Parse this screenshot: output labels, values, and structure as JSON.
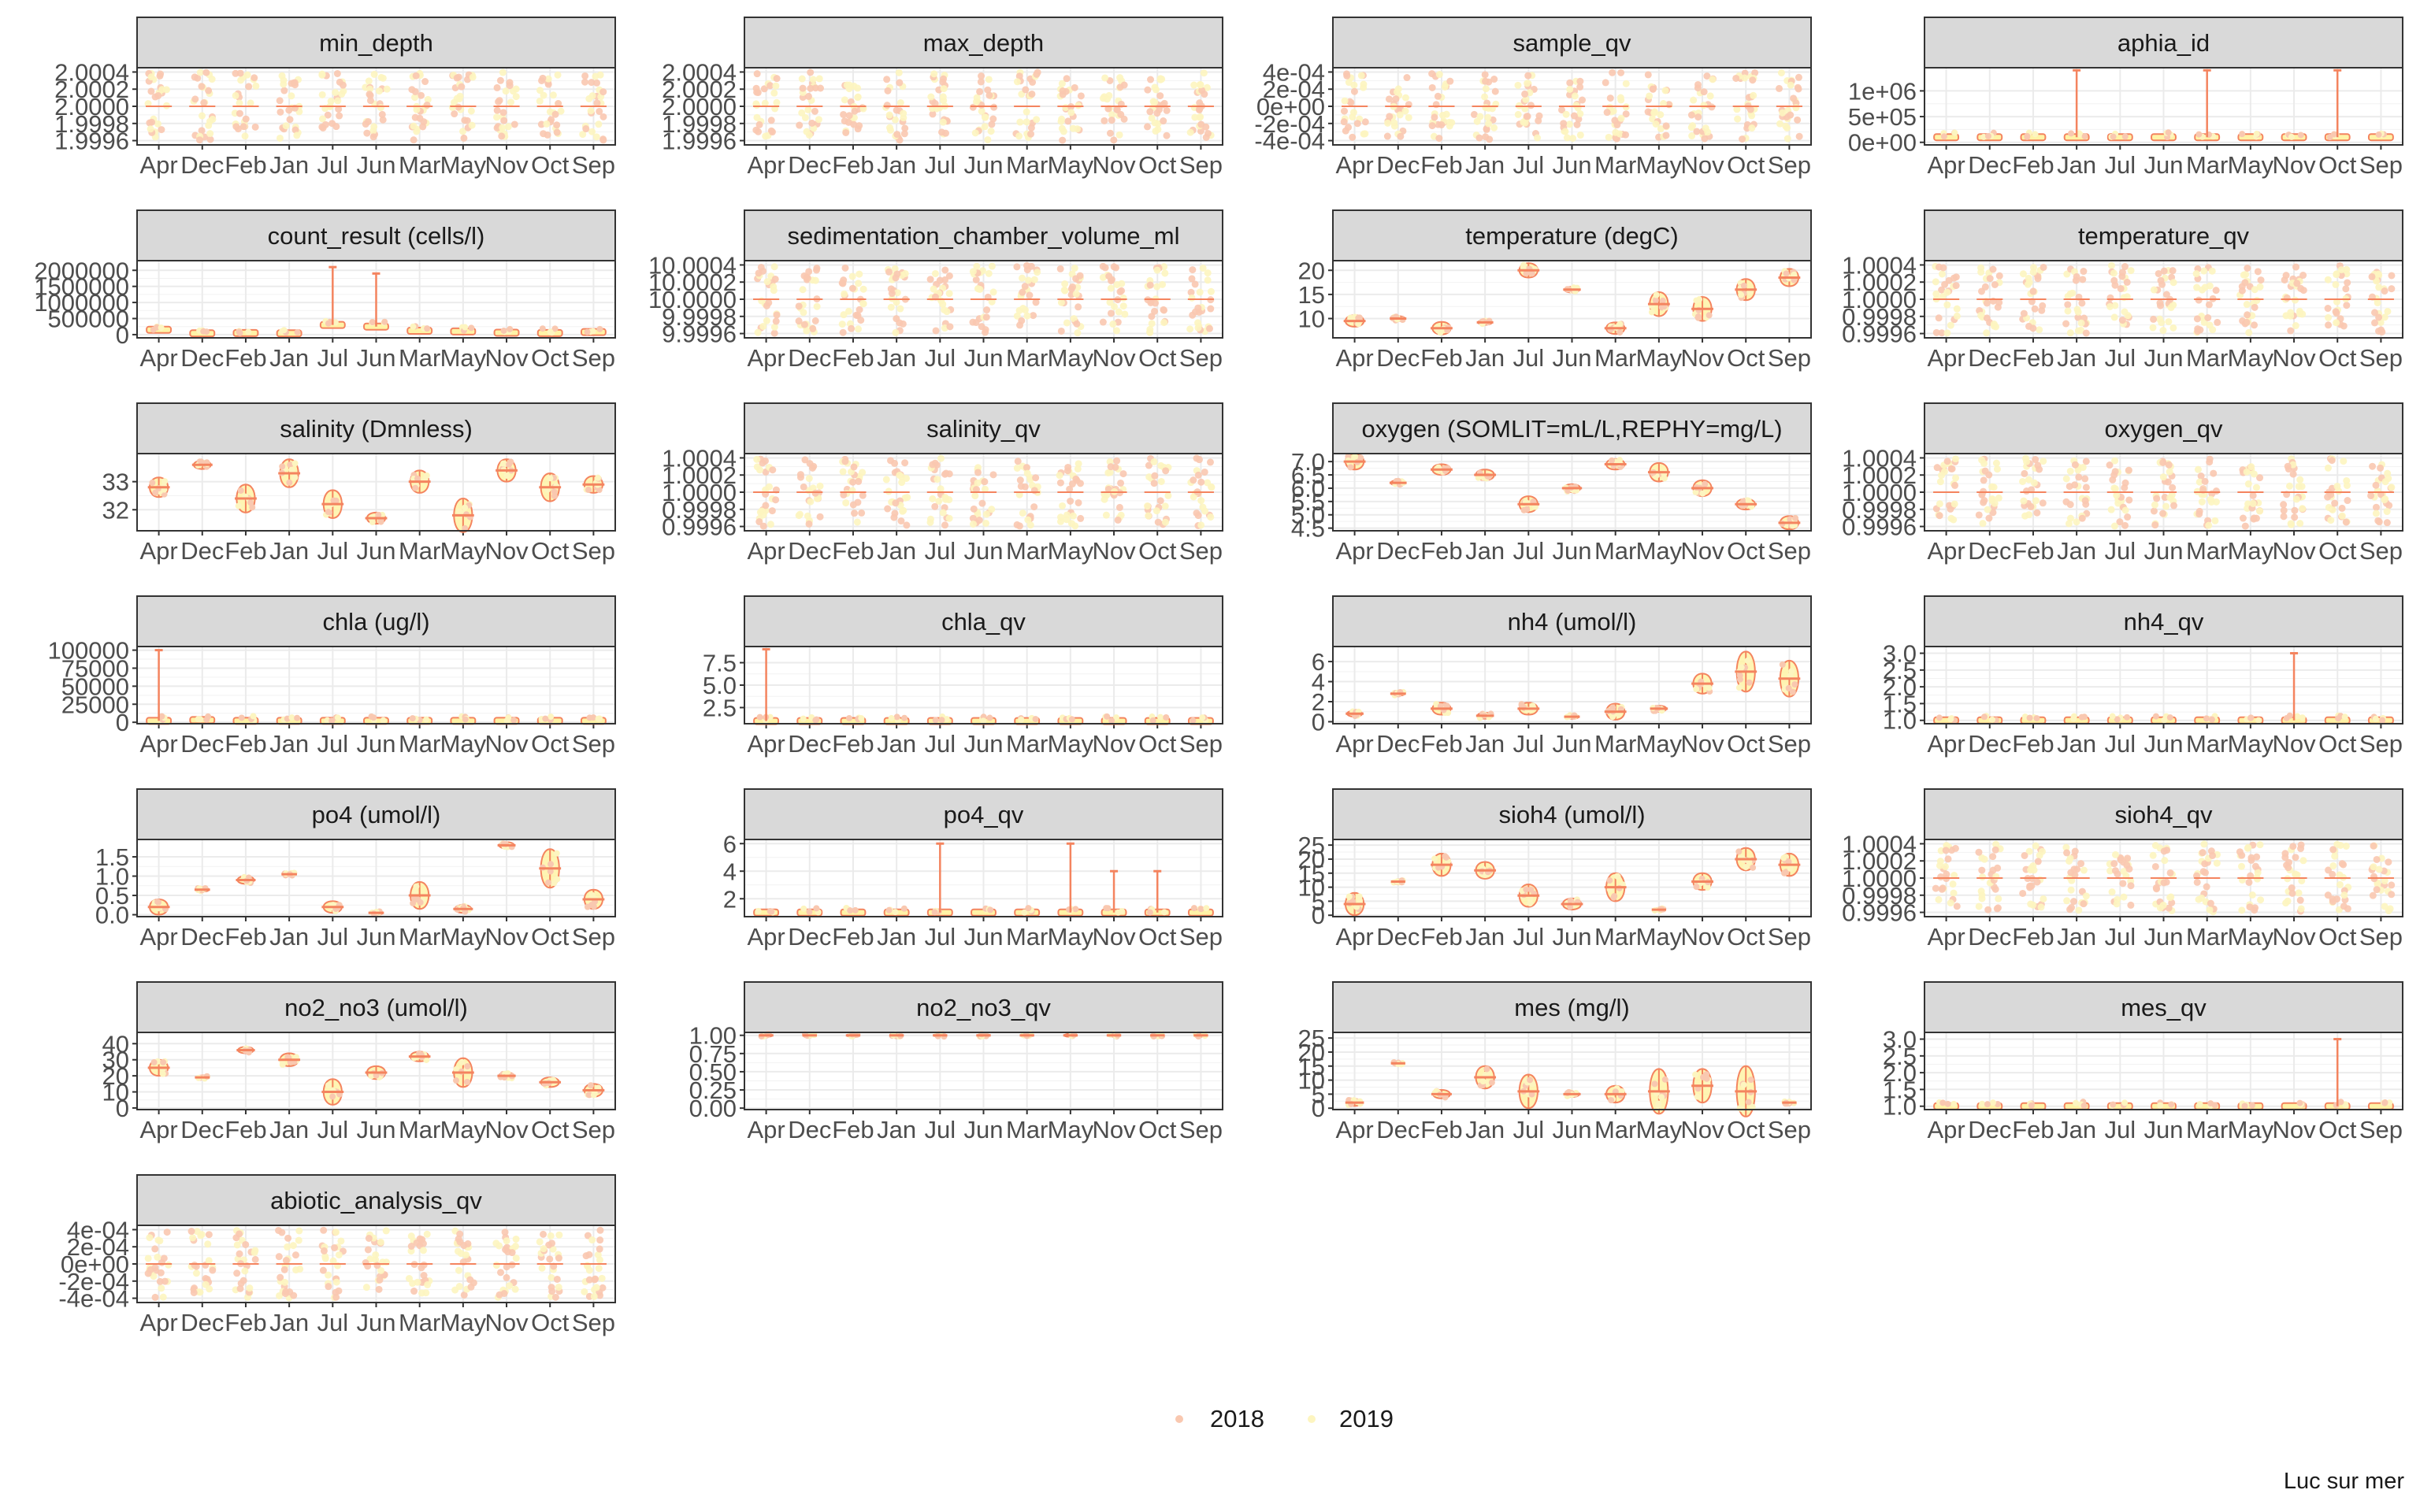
{
  "caption": "Luc sur mer",
  "legend": {
    "placement": "bottom",
    "entries": [
      {
        "label": "2018",
        "color": "#F9C8B0"
      },
      {
        "label": "2019",
        "color": "#FDF5C0"
      }
    ]
  },
  "colors": {
    "y2018_point": "#F9C8B0",
    "y2019_point": "#FDF5C0",
    "violin_dark": "#F4845F",
    "violin_light": "#FFF3A6",
    "strip_fill": "#D9D9D9",
    "grid_major": "#EBEBEB",
    "panel_border": "#333333"
  },
  "chart_data": {
    "type": "violin",
    "grid": true,
    "categories": [
      "Apr",
      "Dec",
      "Feb",
      "Jan",
      "Jul",
      "Jun",
      "Mar",
      "May",
      "Nov",
      "Oct",
      "Sep"
    ],
    "panels": [
      {
        "title": "min_depth",
        "ylim": [
          1.99955,
          2.00045
        ],
        "yticks": [
          1.9996,
          1.9998,
          2.0,
          2.0002,
          2.0004
        ],
        "yticklabels": [
          "1.9996",
          "1.9998",
          "2.0000",
          "2.0002",
          "2.0004"
        ],
        "kind": "jitter",
        "values": [
          2,
          2,
          2,
          2,
          2,
          2,
          2,
          2,
          2,
          2,
          2
        ]
      },
      {
        "title": "max_depth",
        "ylim": [
          1.99955,
          2.00045
        ],
        "yticks": [
          1.9996,
          1.9998,
          2.0,
          2.0002,
          2.0004
        ],
        "yticklabels": [
          "1.9996",
          "1.9998",
          "2.0000",
          "2.0002",
          "2.0004"
        ],
        "kind": "jitter",
        "values": [
          2,
          2,
          2,
          2,
          2,
          2,
          2,
          2,
          2,
          2,
          2
        ]
      },
      {
        "title": "sample_qv",
        "ylim": [
          -0.00045,
          0.00045
        ],
        "yticks": [
          -0.0004,
          -0.0002,
          0,
          0.0002,
          0.0004
        ],
        "yticklabels": [
          "-4e-04",
          "-2e-04",
          "0e+00",
          "2e-04",
          "4e-04"
        ],
        "kind": "jitter",
        "values": [
          0,
          0,
          0,
          0,
          0,
          0,
          0,
          0,
          0,
          0,
          0
        ]
      },
      {
        "title": "aphia_id",
        "ylim": [
          -50000,
          1450000
        ],
        "yticks": [
          0,
          500000,
          1000000
        ],
        "yticklabels": [
          "0e+00",
          "5e+05",
          "1e+06"
        ],
        "kind": "skewed",
        "values": [
          100000,
          100000,
          100000,
          100000,
          100000,
          100000,
          100000,
          100000,
          100000,
          100000,
          100000
        ],
        "spikes": [
          0,
          0,
          0,
          1400000,
          0,
          0,
          1400000,
          0,
          0,
          1400000,
          0
        ]
      },
      {
        "title": "count_result (cells/l)",
        "ylim": [
          -100000,
          2300000
        ],
        "yticks": [
          0,
          500000,
          1000000,
          1500000,
          2000000
        ],
        "yticklabels": [
          "0",
          "500000",
          "1000000",
          "1500000",
          "2000000"
        ],
        "kind": "skewed",
        "values": [
          150000,
          40000,
          50000,
          40000,
          300000,
          250000,
          120000,
          100000,
          60000,
          50000,
          80000
        ],
        "spikes": [
          0,
          0,
          0,
          0,
          2100000,
          1900000,
          0,
          0,
          0,
          0,
          0
        ]
      },
      {
        "title": "sedimentation_chamber_volume_ml",
        "ylim": [
          9.99955,
          10.00045
        ],
        "yticks": [
          9.9996,
          9.9998,
          10.0,
          10.0002,
          10.0004
        ],
        "yticklabels": [
          "9.9996",
          "9.9998",
          "10.0000",
          "10.0002",
          "10.0004"
        ],
        "kind": "jitter",
        "values": [
          10,
          10,
          10,
          10,
          10,
          10,
          10,
          10,
          10,
          10,
          10
        ]
      },
      {
        "title": "temperature (degC)",
        "ylim": [
          6,
          22
        ],
        "yticks": [
          10,
          15,
          20
        ],
        "yticklabels": [
          "10",
          "15",
          "20"
        ],
        "kind": "violin",
        "values": [
          9.5,
          10,
          8,
          9.2,
          20,
          16,
          8,
          13,
          12,
          16,
          18.5
        ],
        "spreads": [
          1.2,
          0.5,
          1.3,
          0.5,
          1.5,
          0.6,
          1.2,
          2.5,
          2.5,
          2.2,
          1.8
        ]
      },
      {
        "title": "temperature_qv",
        "ylim": [
          0.99955,
          1.00045
        ],
        "yticks": [
          0.9996,
          0.9998,
          1.0,
          1.0002,
          1.0004
        ],
        "yticklabels": [
          "0.9996",
          "0.9998",
          "1.0000",
          "1.0002",
          "1.0004"
        ],
        "kind": "jitter",
        "values": [
          1,
          1,
          1,
          1,
          1,
          1,
          1,
          1,
          1,
          1,
          1
        ]
      },
      {
        "title": "salinity (Dmnless)",
        "ylim": [
          31.25,
          34
        ],
        "yticks": [
          32,
          33
        ],
        "yticklabels": [
          "32",
          "33"
        ],
        "kind": "violin",
        "values": [
          32.8,
          33.6,
          32.4,
          33.3,
          32.2,
          31.7,
          33.0,
          31.8,
          33.4,
          32.8,
          32.9
        ],
        "spreads": [
          0.35,
          0.15,
          0.5,
          0.5,
          0.5,
          0.2,
          0.4,
          0.6,
          0.4,
          0.5,
          0.3
        ]
      },
      {
        "title": "salinity_qv",
        "ylim": [
          0.99955,
          1.00045
        ],
        "yticks": [
          0.9996,
          0.9998,
          1.0,
          1.0002,
          1.0004
        ],
        "yticklabels": [
          "0.9996",
          "0.9998",
          "1.0000",
          "1.0002",
          "1.0004"
        ],
        "kind": "jitter",
        "values": [
          1,
          1,
          1,
          1,
          1,
          1,
          1,
          1,
          1,
          1,
          1
        ]
      },
      {
        "title": "oxygen (SOMLIT=mL/L,REPHY=mg/L)",
        "ylim": [
          4.4,
          7.3
        ],
        "yticks": [
          4.5,
          5.0,
          5.5,
          6.0,
          6.5,
          7.0
        ],
        "yticklabels": [
          "4.5",
          "5.0",
          "5.5",
          "6.0",
          "6.5",
          "7.0"
        ],
        "kind": "violin",
        "values": [
          7.0,
          6.2,
          6.7,
          6.5,
          5.4,
          6.0,
          6.9,
          6.6,
          6.0,
          5.4,
          4.7
        ],
        "spreads": [
          0.3,
          0.1,
          0.2,
          0.2,
          0.3,
          0.15,
          0.2,
          0.35,
          0.3,
          0.2,
          0.25
        ]
      },
      {
        "title": "oxygen_qv",
        "ylim": [
          0.99955,
          1.00045
        ],
        "yticks": [
          0.9996,
          0.9998,
          1.0,
          1.0002,
          1.0004
        ],
        "yticklabels": [
          "0.9996",
          "0.9998",
          "1.0000",
          "1.0002",
          "1.0004"
        ],
        "kind": "jitter",
        "values": [
          1,
          1,
          1,
          1,
          1,
          1,
          1,
          1,
          1,
          1,
          1
        ]
      },
      {
        "title": "chla (ug/l)",
        "ylim": [
          -2000,
          105000
        ],
        "yticks": [
          0,
          25000,
          50000,
          75000,
          100000
        ],
        "yticklabels": [
          "0",
          "25000",
          "50000",
          "75000",
          "100000"
        ],
        "kind": "skewed",
        "values": [
          2000,
          3000,
          2000,
          2000,
          2000,
          2000,
          2000,
          2000,
          2000,
          2000,
          2000
        ],
        "spikes": [
          100000,
          0,
          0,
          0,
          0,
          0,
          0,
          0,
          0,
          0,
          0
        ]
      },
      {
        "title": "chla_qv",
        "ylim": [
          0.7,
          9.3
        ],
        "yticks": [
          2.5,
          5.0,
          7.5
        ],
        "yticklabels": [
          "2.5",
          "5.0",
          "7.5"
        ],
        "kind": "skewed",
        "values": [
          1,
          1,
          1,
          1,
          1,
          1,
          1,
          1,
          1,
          1,
          1
        ],
        "spikes": [
          9,
          0,
          0,
          0,
          0,
          0,
          0,
          0,
          0,
          0,
          0
        ]
      },
      {
        "title": "nh4 (umol/l)",
        "ylim": [
          -0.2,
          7.5
        ],
        "yticks": [
          0,
          2,
          4,
          6
        ],
        "yticklabels": [
          "0",
          "2",
          "4",
          "6"
        ],
        "kind": "violin",
        "values": [
          0.8,
          2.8,
          1.3,
          0.6,
          1.3,
          0.5,
          1.0,
          1.3,
          3.8,
          5.0,
          4.3
        ],
        "spreads": [
          0.3,
          0.2,
          0.6,
          0.3,
          0.6,
          0.2,
          0.8,
          0.3,
          1.0,
          2.0,
          1.8
        ]
      },
      {
        "title": "nh4_qv",
        "ylim": [
          0.9,
          3.2
        ],
        "yticks": [
          1.0,
          1.5,
          2.0,
          2.5,
          3.0
        ],
        "yticklabels": [
          "1.0",
          "1.5",
          "2.0",
          "2.5",
          "3.0"
        ],
        "kind": "skewed",
        "values": [
          1,
          1,
          1,
          1,
          1,
          1,
          1,
          1,
          1,
          1,
          1
        ],
        "spikes": [
          0,
          0,
          0,
          0,
          0,
          0,
          0,
          0,
          3.0,
          0,
          0
        ]
      },
      {
        "title": "po4 (umol/l)",
        "ylim": [
          -0.05,
          1.95
        ],
        "yticks": [
          0.0,
          0.5,
          1.0,
          1.5
        ],
        "yticklabels": [
          "0.0",
          "0.5",
          "1.0",
          "1.5"
        ],
        "kind": "violin",
        "values": [
          0.2,
          0.65,
          0.9,
          1.05,
          0.2,
          0.05,
          0.5,
          0.15,
          1.8,
          1.2,
          0.4
        ],
        "spreads": [
          0.2,
          0.05,
          0.1,
          0.05,
          0.15,
          0.05,
          0.35,
          0.1,
          0.08,
          0.5,
          0.25
        ]
      },
      {
        "title": "po4_qv",
        "ylim": [
          0.7,
          6.3
        ],
        "yticks": [
          2,
          4,
          6
        ],
        "yticklabels": [
          "2",
          "4",
          "6"
        ],
        "kind": "skewed",
        "values": [
          1,
          1,
          1,
          1,
          1,
          1,
          1,
          1,
          1,
          1,
          1
        ],
        "spikes": [
          0,
          0,
          0,
          0,
          6,
          0,
          0,
          6,
          4,
          4,
          0
        ]
      },
      {
        "title": "sioh4 (umol/l)",
        "ylim": [
          -0.5,
          27
        ],
        "yticks": [
          0,
          5,
          10,
          15,
          20,
          25
        ],
        "yticklabels": [
          "0",
          "5",
          "10",
          "15",
          "20",
          "25"
        ],
        "kind": "violin",
        "values": [
          4,
          12,
          18,
          16,
          7,
          4,
          10,
          2,
          12,
          20,
          18
        ],
        "spreads": [
          4,
          0.5,
          4,
          3,
          4,
          2,
          5,
          0.5,
          3,
          4,
          4
        ]
      },
      {
        "title": "sioh4_qv",
        "ylim": [
          0.99955,
          1.00045
        ],
        "yticks": [
          0.9996,
          0.9998,
          1.0,
          1.0002,
          1.0004
        ],
        "yticklabels": [
          "0.9996",
          "0.9998",
          "1.0000",
          "1.0002",
          "1.0004"
        ],
        "kind": "jitter",
        "values": [
          1,
          1,
          1,
          1,
          1,
          1,
          1,
          1,
          1,
          1,
          1
        ]
      },
      {
        "title": "no2_no3 (umol/l)",
        "ylim": [
          -1,
          47
        ],
        "yticks": [
          0,
          10,
          20,
          30,
          40
        ],
        "yticklabels": [
          "0",
          "10",
          "20",
          "30",
          "40"
        ],
        "kind": "violin",
        "values": [
          25,
          19,
          36,
          30,
          10,
          22,
          32,
          22,
          20,
          16,
          11
        ],
        "spreads": [
          5,
          1,
          2,
          4,
          8,
          4,
          3,
          9,
          2,
          3,
          4
        ]
      },
      {
        "title": "no2_no3_qv",
        "ylim": [
          -0.02,
          1.04
        ],
        "yticks": [
          0.0,
          0.25,
          0.5,
          0.75,
          1.0
        ],
        "yticklabels": [
          "0.00",
          "0.25",
          "0.50",
          "0.75",
          "1.00"
        ],
        "kind": "violin",
        "values": [
          1,
          1,
          1,
          1,
          1,
          1,
          1,
          1,
          1,
          1,
          1
        ],
        "spreads": [
          0.02,
          0.02,
          0.02,
          0.02,
          0.02,
          0.02,
          0.02,
          0.02,
          0.02,
          0.02,
          0.02
        ]
      },
      {
        "title": "mes (mg/l)",
        "ylim": [
          -0.5,
          27
        ],
        "yticks": [
          0,
          5,
          10,
          15,
          20,
          25
        ],
        "yticklabels": [
          "0",
          "5",
          "10",
          "15",
          "20",
          "25"
        ],
        "kind": "violin",
        "values": [
          2,
          16,
          5,
          11,
          6,
          5,
          5,
          6,
          8,
          6,
          2
        ],
        "spreads": [
          1.2,
          0.5,
          1.5,
          4,
          6,
          1,
          3,
          8,
          6,
          9,
          0.5
        ]
      },
      {
        "title": "mes_qv",
        "ylim": [
          0.9,
          3.2
        ],
        "yticks": [
          1.0,
          1.5,
          2.0,
          2.5,
          3.0
        ],
        "yticklabels": [
          "1.0",
          "1.5",
          "2.0",
          "2.5",
          "3.0"
        ],
        "kind": "skewed",
        "values": [
          1,
          1,
          1,
          1,
          1,
          1,
          1,
          1,
          1,
          1,
          1
        ],
        "spikes": [
          0,
          0,
          0,
          0,
          0,
          0,
          0,
          0,
          0,
          3.0,
          0
        ]
      },
      {
        "title": "abiotic_analysis_qv",
        "ylim": [
          -0.00045,
          0.00045
        ],
        "yticks": [
          -0.0004,
          -0.0002,
          0,
          0.0002,
          0.0004
        ],
        "yticklabels": [
          "-4e-04",
          "-2e-04",
          "0e+00",
          "2e-04",
          "4e-04"
        ],
        "kind": "jitter",
        "values": [
          0,
          0,
          0,
          0,
          0,
          0,
          0,
          0,
          0,
          0,
          0
        ]
      }
    ]
  }
}
